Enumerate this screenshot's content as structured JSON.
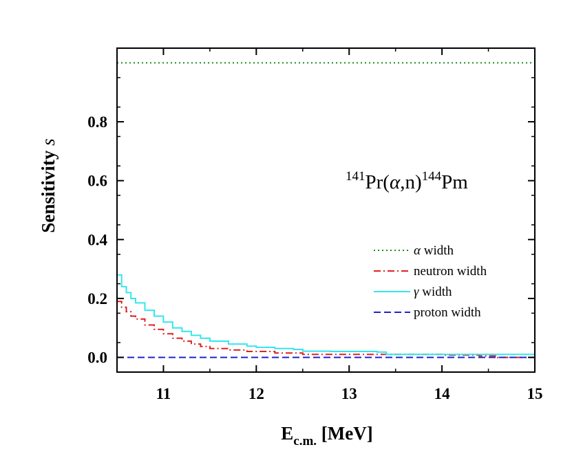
{
  "chart_data": {
    "type": "line",
    "title": "",
    "xlabel_main": "E",
    "xlabel_sub": "c.m.",
    "xlabel_unit": "[MeV]",
    "ylabel_main": "Sensitivity",
    "ylabel_symbol": "s",
    "xlim": [
      10.5,
      15
    ],
    "ylim": [
      -0.05,
      1.05
    ],
    "x_ticks": [
      11,
      12,
      13,
      14,
      15
    ],
    "x_tick_labels": [
      "11",
      "12",
      "13",
      "14",
      "15"
    ],
    "y_ticks": [
      0.0,
      0.2,
      0.4,
      0.6,
      0.8
    ],
    "y_tick_labels": [
      "0.0",
      "0.2",
      "0.4",
      "0.6",
      "0.8"
    ],
    "grid": false,
    "legend_position": "right",
    "annotation": {
      "pre_sup": "141",
      "mid1": "Pr(",
      "greek": "α",
      "mid2": ",n)",
      "post_sup": "144",
      "end": "Pm"
    },
    "series": [
      {
        "name": "α width",
        "greek": "α",
        "label_rest": " width",
        "style": "dotted",
        "color": "#1a8a1a",
        "x": [
          10.5,
          15.0
        ],
        "y": [
          1.0,
          1.0
        ]
      },
      {
        "name": "neutron width",
        "greek": "",
        "label_rest": "neutron width",
        "style": "dashdot",
        "color": "#e02020",
        "x": [
          10.5,
          10.55,
          10.6,
          10.65,
          10.7,
          10.8,
          10.9,
          11.0,
          11.1,
          11.2,
          11.3,
          11.4,
          11.5,
          11.7,
          11.9,
          12.2,
          12.5,
          13.0,
          13.5,
          14.0,
          14.4,
          14.6,
          15.0
        ],
        "y": [
          0.19,
          0.17,
          0.155,
          0.14,
          0.13,
          0.11,
          0.095,
          0.08,
          0.065,
          0.055,
          0.045,
          0.037,
          0.03,
          0.025,
          0.02,
          0.015,
          0.01,
          0.01,
          0.01,
          0.008,
          0.005,
          0.0,
          0.0
        ]
      },
      {
        "name": "γ width",
        "greek": "γ",
        "label_rest": " width",
        "style": "solid",
        "color": "#33e6ee",
        "x": [
          10.5,
          10.55,
          10.6,
          10.65,
          10.7,
          10.8,
          10.9,
          11.0,
          11.1,
          11.2,
          11.3,
          11.4,
          11.5,
          11.7,
          11.9,
          12.0,
          12.2,
          12.4,
          12.5,
          12.8,
          13.0,
          13.3,
          13.4,
          14.0,
          14.5,
          15.0
        ],
        "y": [
          0.28,
          0.24,
          0.22,
          0.2,
          0.185,
          0.16,
          0.14,
          0.12,
          0.1,
          0.088,
          0.075,
          0.065,
          0.055,
          0.045,
          0.038,
          0.034,
          0.03,
          0.027,
          0.021,
          0.02,
          0.02,
          0.018,
          0.01,
          0.01,
          0.01,
          0.01
        ]
      },
      {
        "name": "proton width",
        "greek": "",
        "label_rest": "proton width",
        "style": "dashed",
        "color": "#2020d0",
        "x": [
          10.5,
          15.0
        ],
        "y": [
          0.0,
          0.0
        ]
      }
    ]
  }
}
